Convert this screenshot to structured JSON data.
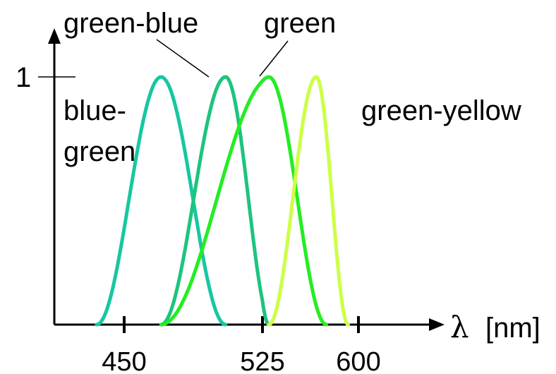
{
  "chart_data": {
    "type": "line",
    "title": "",
    "xlabel": "λ",
    "xlabel_unit": "[nm]",
    "ylabel": "",
    "y_tick_labels": [
      {
        "value": 1,
        "label": "1"
      }
    ],
    "x_ticks": [
      {
        "value": 450,
        "label": "450"
      },
      {
        "value": 525,
        "label": "525"
      },
      {
        "value": 600,
        "label": "600"
      }
    ],
    "xlim": [
      410,
      650
    ],
    "ylim": [
      0,
      1.18
    ],
    "grid": false,
    "legend": "none",
    "series": [
      {
        "name": "blue-green",
        "color": "#17c7a0",
        "x": [
          435,
          470,
          505
        ],
        "y": [
          0,
          1,
          0
        ]
      },
      {
        "name": "green-blue",
        "color": "#1ec47c",
        "x": [
          470,
          505,
          530
        ],
        "y": [
          0,
          1,
          0
        ]
      },
      {
        "name": "green",
        "color": "#22ee22",
        "x": [
          470,
          530,
          575
        ],
        "y": [
          0,
          1,
          0
        ]
      },
      {
        "name": "green-yellow",
        "color": "#ccff44",
        "x": [
          530,
          567,
          592
        ],
        "y": [
          0,
          1,
          0
        ]
      }
    ],
    "annotations": [
      {
        "text": "green-blue",
        "target": "green-blue"
      },
      {
        "text": "green",
        "target": "green"
      },
      {
        "text": "blue-",
        "line2": "green",
        "target": "blue-green"
      },
      {
        "text": "green-yellow",
        "target": "green-yellow"
      }
    ]
  }
}
